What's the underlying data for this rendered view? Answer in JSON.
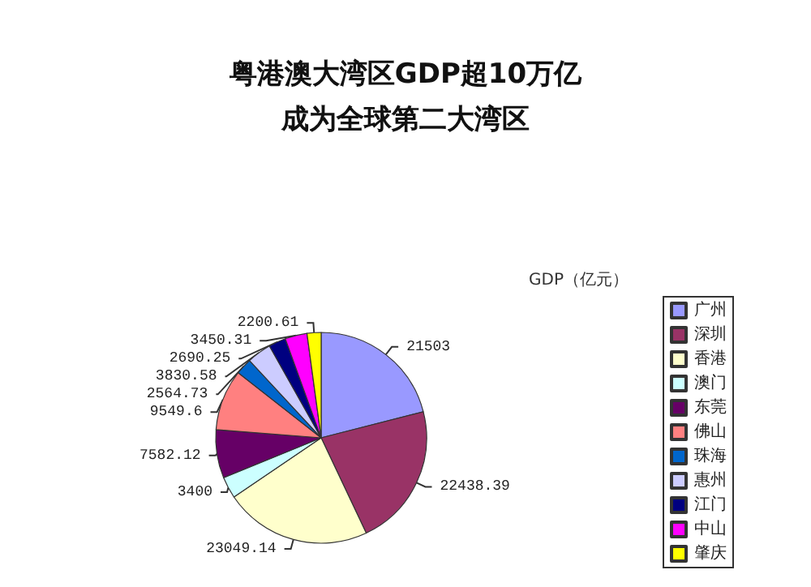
{
  "chart_data": {
    "type": "pie",
    "title": "粤港澳大湾区GDP超10万亿",
    "subtitle": "成为全球第二大湾区",
    "legend_title": "GDP（亿元）",
    "categories": [
      "广州",
      "深圳",
      "香港",
      "澳门",
      "东莞",
      "佛山",
      "珠海",
      "惠州",
      "江门",
      "中山",
      "肇庆"
    ],
    "values": [
      21503,
      22438.39,
      23049.14,
      3400,
      7582.12,
      9549.6,
      2564.73,
      3830.58,
      2690.25,
      3450.31,
      2200.61
    ],
    "colors": [
      "#9999ff",
      "#993366",
      "#ffffcc",
      "#ccffff",
      "#660066",
      "#ff8080",
      "#0066cc",
      "#ccccff",
      "#000080",
      "#ff00ff",
      "#ffff00"
    ],
    "data_labels": true,
    "legend": "right"
  }
}
